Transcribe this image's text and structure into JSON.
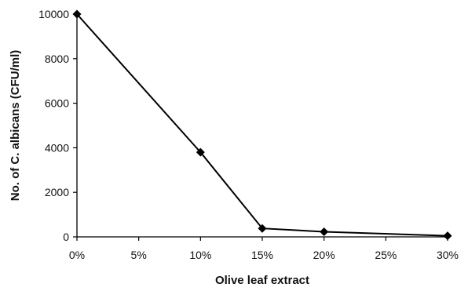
{
  "chart_data": {
    "type": "line",
    "title": "",
    "xlabel": "Olive leaf extract",
    "ylabel": "No. of C. albicans (CFU/ml)",
    "x_ticks": [
      "0%",
      "5%",
      "10%",
      "15%",
      "20%",
      "25%",
      "30%"
    ],
    "y_ticks": [
      "0",
      "2000",
      "4000",
      "6000",
      "8000",
      "10000"
    ],
    "ylim": [
      0,
      10000
    ],
    "xlim": [
      0,
      30
    ],
    "grid": false,
    "legend": "none",
    "series": [
      {
        "x": [
          0,
          10,
          15,
          20,
          30
        ],
        "values": [
          10000,
          3800,
          380,
          230,
          50
        ],
        "color": "#000000",
        "marker": "diamond"
      }
    ]
  }
}
